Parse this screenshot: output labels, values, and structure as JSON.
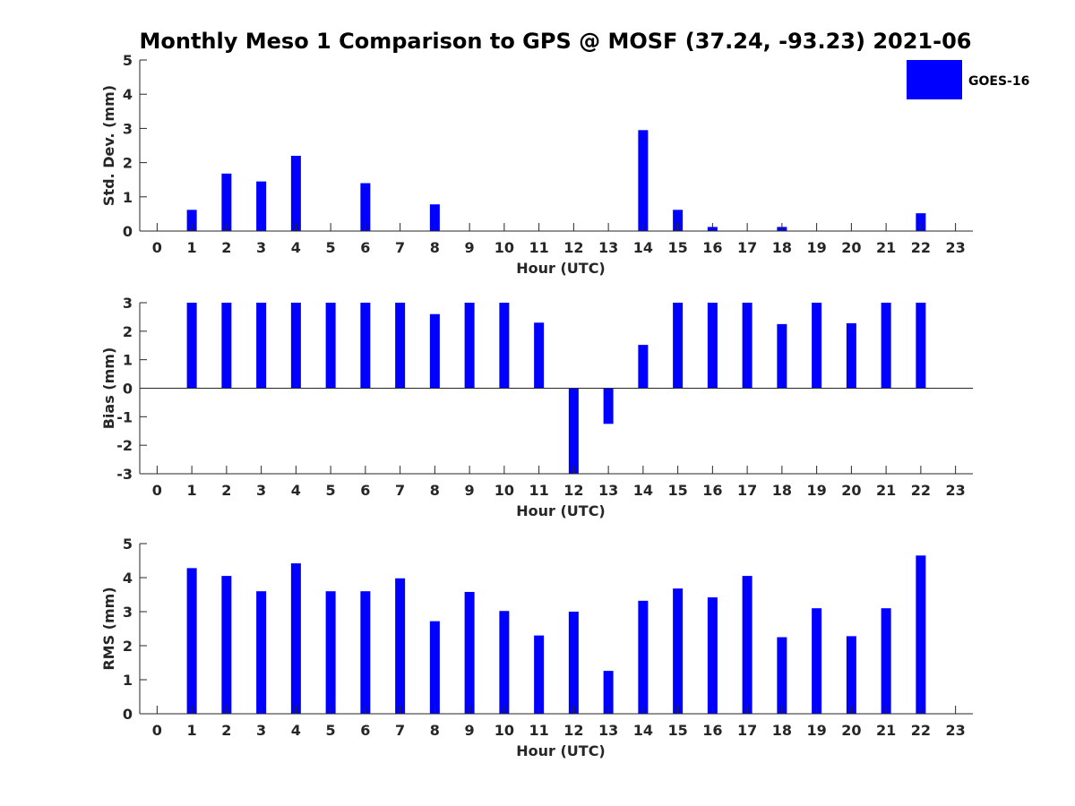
{
  "title": "Monthly Meso 1 Comparison to GPS @ MOSF (37.24, -93.23) 2021-06",
  "legend": {
    "label": "GOES-16",
    "color": "#0000ff",
    "placement": "top-right"
  },
  "chart_data": [
    {
      "type": "bar",
      "xlabel": "Hour (UTC)",
      "ylabel": "Std. Dev. (mm)",
      "xlim": [
        -0.5,
        23.5
      ],
      "ylim": [
        0,
        5
      ],
      "yticks": [
        "0",
        "1",
        "2",
        "3",
        "4",
        "5"
      ],
      "categories": [
        "0",
        "1",
        "2",
        "3",
        "4",
        "5",
        "6",
        "7",
        "8",
        "9",
        "10",
        "11",
        "12",
        "13",
        "14",
        "15",
        "16",
        "17",
        "18",
        "19",
        "20",
        "21",
        "22",
        "23"
      ],
      "series": [
        {
          "name": "GOES-16",
          "values": [
            null,
            0.62,
            1.68,
            1.45,
            2.2,
            null,
            1.4,
            null,
            0.78,
            null,
            null,
            null,
            null,
            null,
            2.95,
            0.62,
            0.12,
            null,
            0.12,
            null,
            null,
            null,
            0.52,
            null
          ]
        }
      ],
      "grid": false
    },
    {
      "type": "bar",
      "xlabel": "Hour (UTC)",
      "ylabel": "Bias (mm)",
      "xlim": [
        -0.5,
        23.5
      ],
      "ylim": [
        -3,
        3
      ],
      "yticks": [
        "-3",
        "-2",
        "-1",
        "0",
        "1",
        "2",
        "3"
      ],
      "categories": [
        "0",
        "1",
        "2",
        "3",
        "4",
        "5",
        "6",
        "7",
        "8",
        "9",
        "10",
        "11",
        "12",
        "13",
        "14",
        "15",
        "16",
        "17",
        "18",
        "19",
        "20",
        "21",
        "22",
        "23"
      ],
      "series": [
        {
          "name": "GOES-16",
          "values": [
            null,
            3,
            3,
            3,
            3,
            3,
            3,
            3,
            2.6,
            3,
            3,
            2.3,
            -3,
            -1.25,
            1.52,
            3,
            3,
            3,
            2.25,
            3,
            2.28,
            3,
            3,
            null
          ]
        }
      ],
      "grid": false
    },
    {
      "type": "bar",
      "xlabel": "Hour (UTC)",
      "ylabel": "RMS (mm)",
      "xlim": [
        -0.5,
        23.5
      ],
      "ylim": [
        0,
        5
      ],
      "yticks": [
        "0",
        "1",
        "2",
        "3",
        "4",
        "5"
      ],
      "categories": [
        "0",
        "1",
        "2",
        "3",
        "4",
        "5",
        "6",
        "7",
        "8",
        "9",
        "10",
        "11",
        "12",
        "13",
        "14",
        "15",
        "16",
        "17",
        "18",
        "19",
        "20",
        "21",
        "22",
        "23"
      ],
      "series": [
        {
          "name": "GOES-16",
          "values": [
            null,
            4.28,
            4.05,
            3.6,
            4.42,
            3.6,
            3.6,
            3.98,
            2.72,
            3.58,
            3.02,
            2.3,
            3.0,
            1.26,
            3.32,
            3.68,
            3.42,
            4.05,
            2.25,
            3.1,
            2.28,
            3.1,
            4.65,
            null
          ]
        }
      ],
      "grid": false
    }
  ]
}
